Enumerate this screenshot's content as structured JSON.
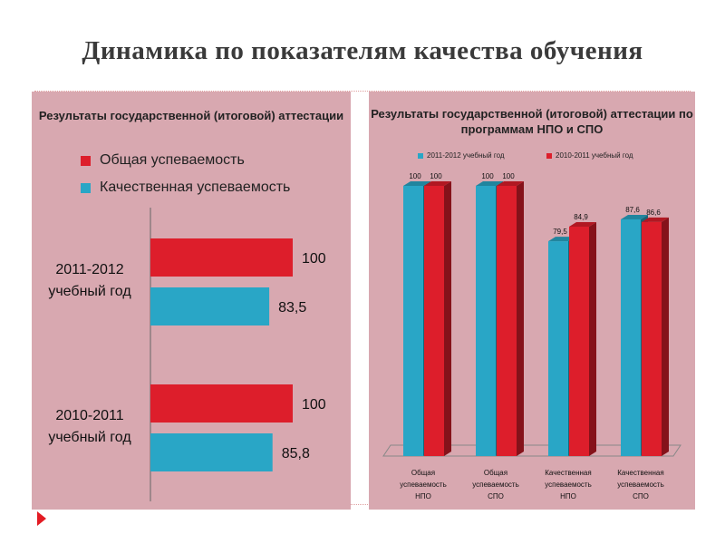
{
  "slide": {
    "title": "Динамика по показателям качества обучения"
  },
  "colors": {
    "red": "#dd1e2b",
    "blue": "#29a6c6",
    "panel": "#d8a8b0",
    "arrow": "#e31b23"
  },
  "chart_data": [
    {
      "type": "bar",
      "orientation": "horizontal",
      "title": "Результаты государственной (итоговой) аттестации",
      "categories": [
        "2011-2012 учебный год",
        "2010-2011 учебный год"
      ],
      "series": [
        {
          "name": "Общая успеваемость",
          "color": "#dd1e2b",
          "values": [
            100,
            100
          ],
          "labels": [
            "100",
            "100"
          ]
        },
        {
          "name": "Качественная успеваемость",
          "color": "#29a6c6",
          "values": [
            83.5,
            85.8
          ],
          "labels": [
            "83,5",
            "85,8"
          ]
        }
      ],
      "xlim": [
        0,
        100
      ],
      "grid": false,
      "legend": "top-left"
    },
    {
      "type": "bar",
      "orientation": "vertical",
      "style": "3d",
      "title": "Результаты государственной (итоговой) аттестации по программам НПО и СПО",
      "categories": [
        "Общая успеваемость НПО",
        "Общая успеваемость СПО",
        "Качественная успеваемость НПО",
        "Качественная успеваемость СПО"
      ],
      "series": [
        {
          "name": "2011-2012 учебный год",
          "color": "#29a6c6",
          "values": [
            100,
            100,
            79.5,
            87.6
          ],
          "labels": [
            "100",
            "100",
            "79,5",
            "87,6"
          ]
        },
        {
          "name": "2010-2011 учебный год",
          "color": "#dd1e2b",
          "values": [
            100,
            100,
            84.9,
            86.6
          ],
          "labels": [
            "100",
            "100",
            "84,9",
            "86,6"
          ]
        }
      ],
      "ylim": [
        0,
        100
      ],
      "grid": false,
      "legend": "top"
    }
  ]
}
